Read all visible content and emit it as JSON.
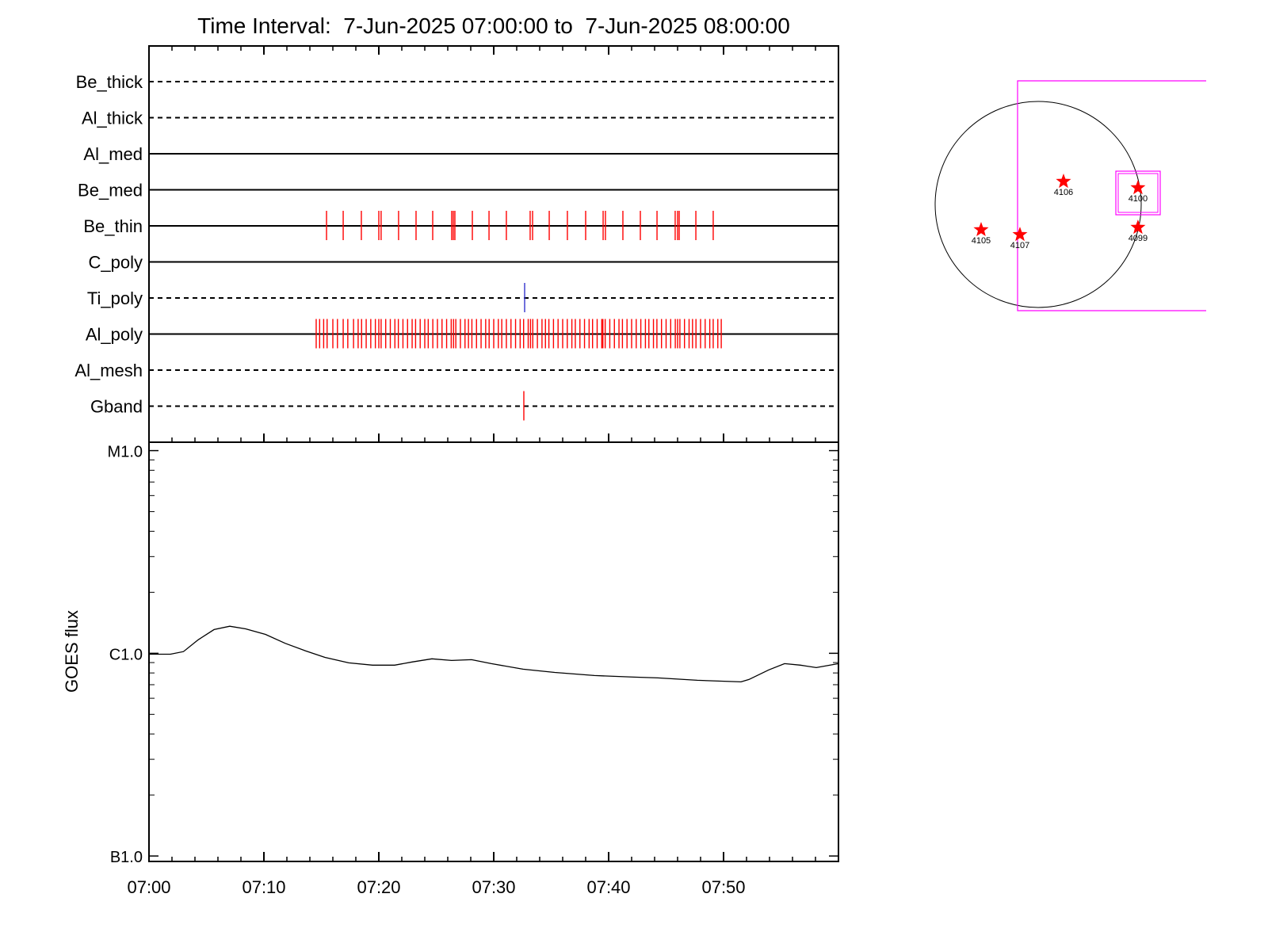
{
  "chart_data": [
    {
      "type": "timeline",
      "title": "Time Interval:  7-Jun-2025 07:00:00 to  7-Jun-2025 08:00:00",
      "xlim": [
        0,
        60
      ],
      "xticks": [
        0,
        10,
        20,
        30,
        40,
        50
      ],
      "xminor": [
        2,
        4,
        6,
        8,
        12,
        14,
        16,
        18,
        22,
        24,
        26,
        28,
        32,
        34,
        36,
        38,
        42,
        44,
        46,
        48,
        52,
        54,
        56,
        58
      ],
      "rows": [
        {
          "name": "Be_thick",
          "style": "dashed",
          "color": "#ff0000",
          "events": []
        },
        {
          "name": "Al_thick",
          "style": "dashed",
          "color": "#ff0000",
          "events": []
        },
        {
          "name": "Al_med",
          "style": "solid",
          "color": "#ff0000",
          "events": []
        },
        {
          "name": "Be_med",
          "style": "solid",
          "color": "#ff0000",
          "events": []
        },
        {
          "name": "Be_thin",
          "style": "solid",
          "color": "#ff0000",
          "events": [
            15.45,
            16.9,
            18.48,
            20.0,
            20.2,
            21.72,
            23.24,
            24.69,
            26.34,
            26.48,
            26.62,
            28.14,
            29.59,
            31.1,
            33.17,
            33.38,
            34.83,
            36.41,
            38.0,
            39.52,
            39.72,
            41.24,
            42.76,
            44.21,
            45.79,
            46.0,
            46.14,
            47.59,
            49.1
          ]
        },
        {
          "name": "C_poly",
          "style": "solid",
          "color": "#ff0000",
          "events": []
        },
        {
          "name": "Ti_poly",
          "style": "dashed",
          "color": "#3333cc",
          "events": [
            32.69
          ]
        },
        {
          "name": "Al_poly",
          "style": "solid",
          "color": "#ff0000",
          "events": [
            14.55,
            14.85,
            15.2,
            15.5,
            16.0,
            16.4,
            16.9,
            17.3,
            17.8,
            18.2,
            18.5,
            18.9,
            19.3,
            19.7,
            20.0,
            20.2,
            20.6,
            21.0,
            21.4,
            21.7,
            22.1,
            22.5,
            22.9,
            23.2,
            23.6,
            24.0,
            24.3,
            24.7,
            25.1,
            25.5,
            25.9,
            26.3,
            26.5,
            26.7,
            27.1,
            27.5,
            27.8,
            28.1,
            28.5,
            28.9,
            29.3,
            29.6,
            30.0,
            30.4,
            30.7,
            31.1,
            31.5,
            31.9,
            32.3,
            32.6,
            33.0,
            33.2,
            33.4,
            33.8,
            34.2,
            34.5,
            34.8,
            35.2,
            35.6,
            36.0,
            36.4,
            36.8,
            37.1,
            37.5,
            37.9,
            38.3,
            38.6,
            39.0,
            39.4,
            39.5,
            39.7,
            40.1,
            40.5,
            40.9,
            41.2,
            41.6,
            42.0,
            42.4,
            42.8,
            43.2,
            43.5,
            43.9,
            44.2,
            44.6,
            45.0,
            45.4,
            45.8,
            46.0,
            46.2,
            46.6,
            47.0,
            47.3,
            47.6,
            48.0,
            48.4,
            48.8,
            49.1,
            49.5,
            49.8
          ]
        },
        {
          "name": "Al_mesh",
          "style": "dashed",
          "color": "#ff0000",
          "events": []
        },
        {
          "name": "Gband",
          "style": "dashed",
          "color": "#ff0000",
          "events": [
            32.62
          ]
        }
      ]
    },
    {
      "type": "line",
      "ylabel": "GOES flux",
      "log": true,
      "color": "#000000",
      "xlim": [
        0,
        60
      ],
      "xticks": [
        {
          "value": 0,
          "label": "07:00"
        },
        {
          "value": 10,
          "label": "07:10"
        },
        {
          "value": 20,
          "label": "07:20"
        },
        {
          "value": 30,
          "label": "07:30"
        },
        {
          "value": 40,
          "label": "07:40"
        },
        {
          "value": 50,
          "label": "07:50"
        }
      ],
      "xminor": [
        2,
        4,
        6,
        8,
        12,
        14,
        16,
        18,
        22,
        24,
        26,
        28,
        32,
        34,
        36,
        38,
        42,
        44,
        46,
        48,
        52,
        54,
        56,
        58
      ],
      "ylim": [
        9.4e-08,
        1.1e-05
      ],
      "yticks": [
        {
          "value": 1e-07,
          "label": "B1.0"
        },
        {
          "value": 1e-06,
          "label": "C1.0"
        },
        {
          "value": 1e-05,
          "label": "M1.0"
        }
      ],
      "yminor": [
        2e-07,
        3e-07,
        4e-07,
        5e-07,
        6e-07,
        7e-07,
        8e-07,
        9e-07,
        2e-06,
        3e-06,
        4e-06,
        5e-06,
        6e-06,
        7e-06,
        8e-06,
        9e-06
      ],
      "x": [
        0,
        1.86,
        3.0,
        4.28,
        5.66,
        7.03,
        8.41,
        10.14,
        11.86,
        13.59,
        15.31,
        17.38,
        19.45,
        21.38,
        22.9,
        24.62,
        26.34,
        28.07,
        29.79,
        32.55,
        35.31,
        38.76,
        42.21,
        44.28,
        47.72,
        51.52,
        52.21,
        53.93,
        55.31,
        56.69,
        58.07,
        60
      ],
      "values": [
        9.9e-07,
        9.9e-07,
        1.02e-06,
        1.166e-06,
        1.31e-06,
        1.36e-06,
        1.32e-06,
        1.24e-06,
        1.12e-06,
        1.03e-06,
        9.55e-07,
        8.97e-07,
        8.74e-07,
        8.74e-07,
        9.06e-07,
        9.39e-07,
        9.22e-07,
        9.3e-07,
        8.89e-07,
        8.35e-07,
        8.05e-07,
        7.77e-07,
        7.63e-07,
        7.56e-07,
        7.36e-07,
        7.23e-07,
        7.43e-07,
        8.28e-07,
        8.89e-07,
        8.74e-07,
        8.5e-07,
        8.89e-07
      ]
    }
  ],
  "sun_map": {
    "solar_radius": 960,
    "regions": [
      {
        "label": "4106",
        "x": 236,
        "y": 214
      },
      {
        "label": "4100",
        "x": 930,
        "y": 155
      },
      {
        "label": "4105",
        "x": -532,
        "y": -236
      },
      {
        "label": "4107",
        "x": -170,
        "y": -281
      },
      {
        "label": "4099",
        "x": 930,
        "y": -214
      }
    ]
  }
}
